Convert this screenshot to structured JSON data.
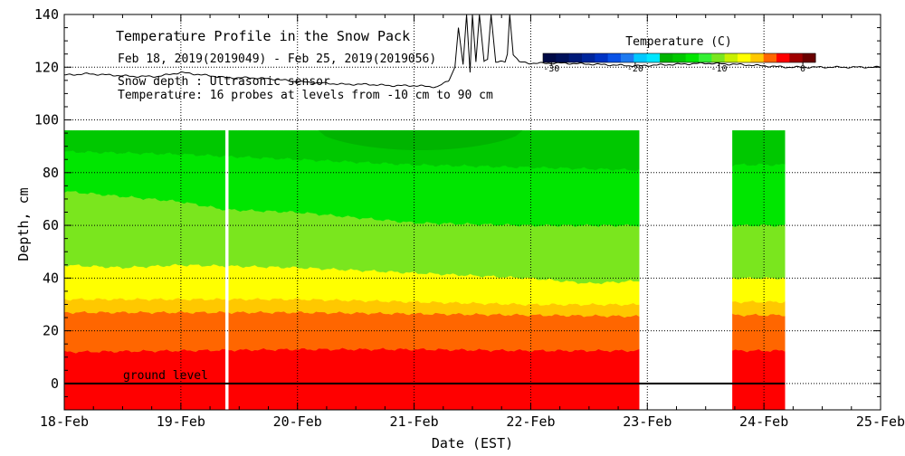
{
  "chart_data": {
    "type": "heatmap",
    "title": "Temperature Profile in the Snow Pack",
    "subtitle": "Feb 18, 2019(2019049) - Feb 25, 2019(2019056)",
    "info_lines": [
      "Snow depth : Ultrasonic sensor",
      "Temperature: 16 probes at levels from -10 cm to 90 cm"
    ],
    "xlabel": "Date (EST)",
    "ylabel": "Depth, cm",
    "x_tick_labels": [
      "18-Feb",
      "19-Feb",
      "20-Feb",
      "21-Feb",
      "22-Feb",
      "23-Feb",
      "24-Feb",
      "25-Feb"
    ],
    "xlim_days": [
      0,
      7
    ],
    "ylim": [
      -10,
      140
    ],
    "y_ticks": [
      0,
      20,
      40,
      60,
      80,
      100,
      120,
      140
    ],
    "ground_label": "ground level",
    "colorbar": {
      "title": "Temperature (C)",
      "ticks": [
        -30,
        -20,
        -10,
        0
      ],
      "range": [
        -31,
        1.5
      ],
      "colors": [
        "#000a46",
        "#00115a",
        "#001a78",
        "#00269c",
        "#0033c4",
        "#0a52e6",
        "#1e7af0",
        "#00c8ff",
        "#00e6ff",
        "#00b400",
        "#00c800",
        "#00e600",
        "#33f033",
        "#7ae61e",
        "#c8f000",
        "#ffff00",
        "#ffc800",
        "#ff6600",
        "#ff0000",
        "#a00000",
        "#6a0000"
      ]
    },
    "temperature_bands": [
      {
        "lower_cm": -10,
        "color": "#ff0000"
      },
      {
        "lower_cm": 13,
        "color": "#ff6600"
      },
      {
        "lower_cm": 27,
        "color": "#ffc800"
      },
      {
        "lower_cm": 32,
        "color": "#ffff00"
      },
      {
        "lower_cm": 45,
        "color": "#7ae61e"
      },
      {
        "lower_cm": 72,
        "color": "#00e600"
      },
      {
        "lower_cm": 88,
        "color": "#00c800"
      },
      {
        "lower_cm": 90,
        "color": "#00b400",
        "top_cm": 96,
        "note": "colder core 20-Feb to 22-Feb"
      }
    ],
    "data_segments_days": [
      [
        0,
        1.38
      ],
      [
        1.41,
        4.93
      ],
      [
        5.73,
        6.18
      ]
    ],
    "contours": {
      "red_orange": [
        [
          0,
          12
        ],
        [
          1,
          12.5
        ],
        [
          2,
          13
        ],
        [
          3,
          13
        ],
        [
          4,
          12.5
        ],
        [
          4.93,
          12.5
        ],
        [
          5.73,
          12.5
        ],
        [
          6.18,
          12.5
        ]
      ],
      "orange_gold": [
        [
          0,
          27
        ],
        [
          1,
          27
        ],
        [
          2,
          27
        ],
        [
          3,
          26.5
        ],
        [
          4,
          26
        ],
        [
          4.93,
          25.5
        ],
        [
          5.73,
          26
        ],
        [
          6.18,
          26
        ]
      ],
      "gold_yellow": [
        [
          0,
          32
        ],
        [
          1,
          32
        ],
        [
          2,
          32
        ],
        [
          3,
          31
        ],
        [
          4,
          30
        ],
        [
          4.93,
          30
        ],
        [
          5.73,
          31
        ],
        [
          6.18,
          31
        ]
      ],
      "yellow_lime": [
        [
          0,
          45
        ],
        [
          0.5,
          44
        ],
        [
          1,
          45
        ],
        [
          2,
          44
        ],
        [
          3,
          42
        ],
        [
          4,
          40
        ],
        [
          4.5,
          38
        ],
        [
          4.93,
          39
        ],
        [
          5.73,
          40
        ],
        [
          6.18,
          40
        ]
      ],
      "lime_green": [
        [
          0,
          73
        ],
        [
          1,
          69
        ],
        [
          1.38,
          66
        ],
        [
          2,
          65
        ],
        [
          2.5,
          63
        ],
        [
          3,
          61
        ],
        [
          4,
          60
        ],
        [
          4.93,
          60
        ],
        [
          5.73,
          60
        ],
        [
          6.18,
          60
        ]
      ],
      "green_mid": [
        [
          0,
          88
        ],
        [
          1,
          87
        ],
        [
          2,
          85
        ],
        [
          3,
          83
        ],
        [
          4,
          82
        ],
        [
          4.93,
          81
        ],
        [
          5.73,
          83
        ],
        [
          6.18,
          83
        ]
      ]
    },
    "snow_depth_series_cm": [
      [
        0,
        117
      ],
      [
        0.2,
        117.5
      ],
      [
        0.4,
        117
      ],
      [
        0.6,
        116.5
      ],
      [
        0.8,
        116.5
      ],
      [
        1.0,
        118
      ],
      [
        1.2,
        117
      ],
      [
        1.4,
        116
      ],
      [
        1.6,
        116
      ],
      [
        1.8,
        115.5
      ],
      [
        2.0,
        114.5
      ],
      [
        2.2,
        114
      ],
      [
        2.4,
        113.5
      ],
      [
        2.6,
        113.5
      ],
      [
        2.8,
        113
      ],
      [
        3.0,
        113
      ],
      [
        3.2,
        112.5
      ],
      [
        3.3,
        115
      ],
      [
        3.35,
        120
      ],
      [
        3.38,
        135
      ],
      [
        3.42,
        121
      ],
      [
        3.45,
        140
      ],
      [
        3.48,
        118
      ],
      [
        3.5,
        140
      ],
      [
        3.53,
        122
      ],
      [
        3.56,
        140
      ],
      [
        3.6,
        122
      ],
      [
        3.63,
        123
      ],
      [
        3.66,
        140
      ],
      [
        3.7,
        122
      ],
      [
        3.78,
        122
      ],
      [
        3.8,
        125
      ],
      [
        3.82,
        140
      ],
      [
        3.85,
        125
      ],
      [
        3.9,
        122
      ],
      [
        4.0,
        121.5
      ],
      [
        4.3,
        121.5
      ],
      [
        4.6,
        121
      ],
      [
        4.9,
        120.5
      ],
      [
        5.2,
        121
      ],
      [
        5.5,
        121.5
      ],
      [
        5.8,
        121
      ],
      [
        6.2,
        120
      ],
      [
        6.6,
        120
      ],
      [
        7.0,
        120
      ]
    ]
  }
}
